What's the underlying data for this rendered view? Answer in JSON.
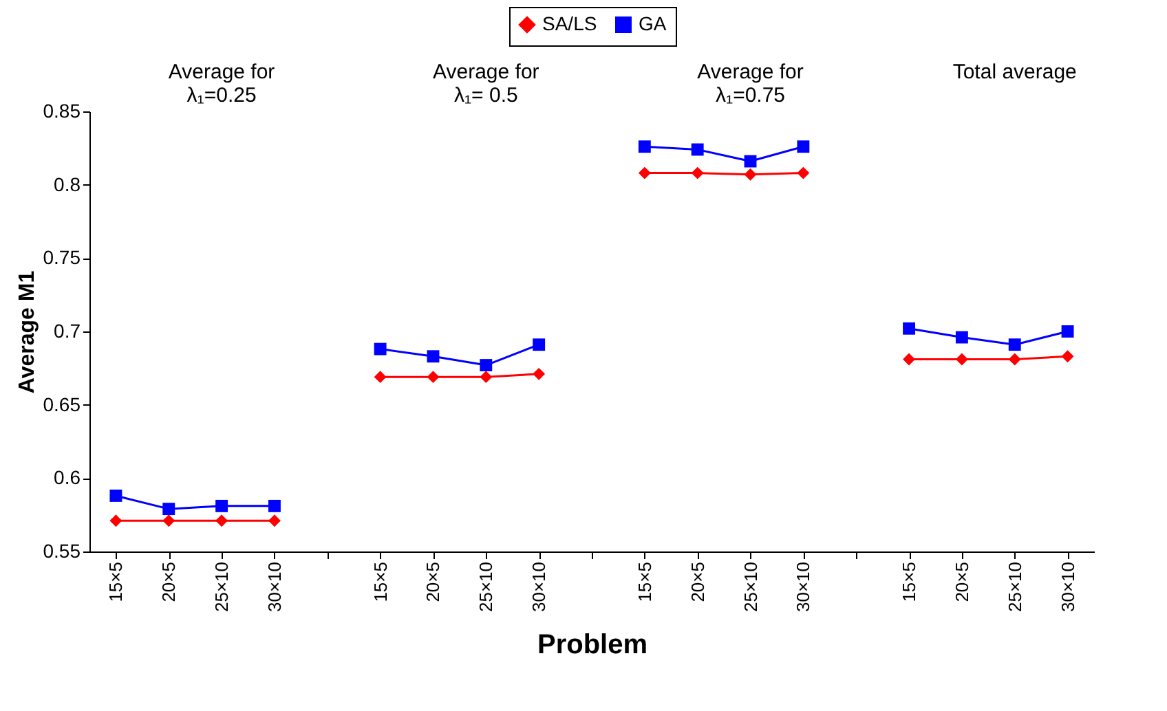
{
  "chart_data": {
    "type": "line",
    "xlabel": "Problem",
    "ylabel": "Average M1",
    "categories": [
      "15×5",
      "20×5",
      "25×10",
      "30×10",
      null,
      "15×5",
      "20×5",
      "25×10",
      "30×10",
      null,
      "15×5",
      "20×5",
      "25×10",
      "30×10",
      null,
      "15×5",
      "20×5",
      "25×10",
      "30×10"
    ],
    "series": [
      {
        "name": "SA/LS",
        "color": "#ff0000",
        "marker": "diamond",
        "values": [
          0.571,
          0.571,
          0.571,
          0.571,
          null,
          0.669,
          0.669,
          0.669,
          0.671,
          null,
          0.808,
          0.808,
          0.807,
          0.808,
          null,
          0.681,
          0.681,
          0.681,
          0.683
        ]
      },
      {
        "name": "GA",
        "color": "#0000ff",
        "marker": "square",
        "values": [
          0.588,
          0.579,
          0.581,
          0.581,
          null,
          0.688,
          0.683,
          0.677,
          0.691,
          null,
          0.826,
          0.824,
          0.816,
          0.826,
          null,
          0.702,
          0.696,
          0.691,
          0.7
        ]
      }
    ],
    "ylim": [
      0.55,
      0.85
    ],
    "yticks": [
      {
        "value": 0.55,
        "label": "0.55"
      },
      {
        "value": 0.6,
        "label": "0.6"
      },
      {
        "value": 0.65,
        "label": "0.65"
      },
      {
        "value": 0.7,
        "label": "0.7"
      },
      {
        "value": 0.75,
        "label": "0.75"
      },
      {
        "value": 0.8,
        "label": "0.8"
      },
      {
        "value": 0.85,
        "label": "0.85"
      }
    ],
    "grid": false,
    "legend": "top",
    "line_style": "solid",
    "annotations": [
      "Average for\nλ₁=0.25",
      "Average for\nλ₁= 0.5",
      "Average for\nλ₁=0.75",
      "Total average"
    ]
  }
}
